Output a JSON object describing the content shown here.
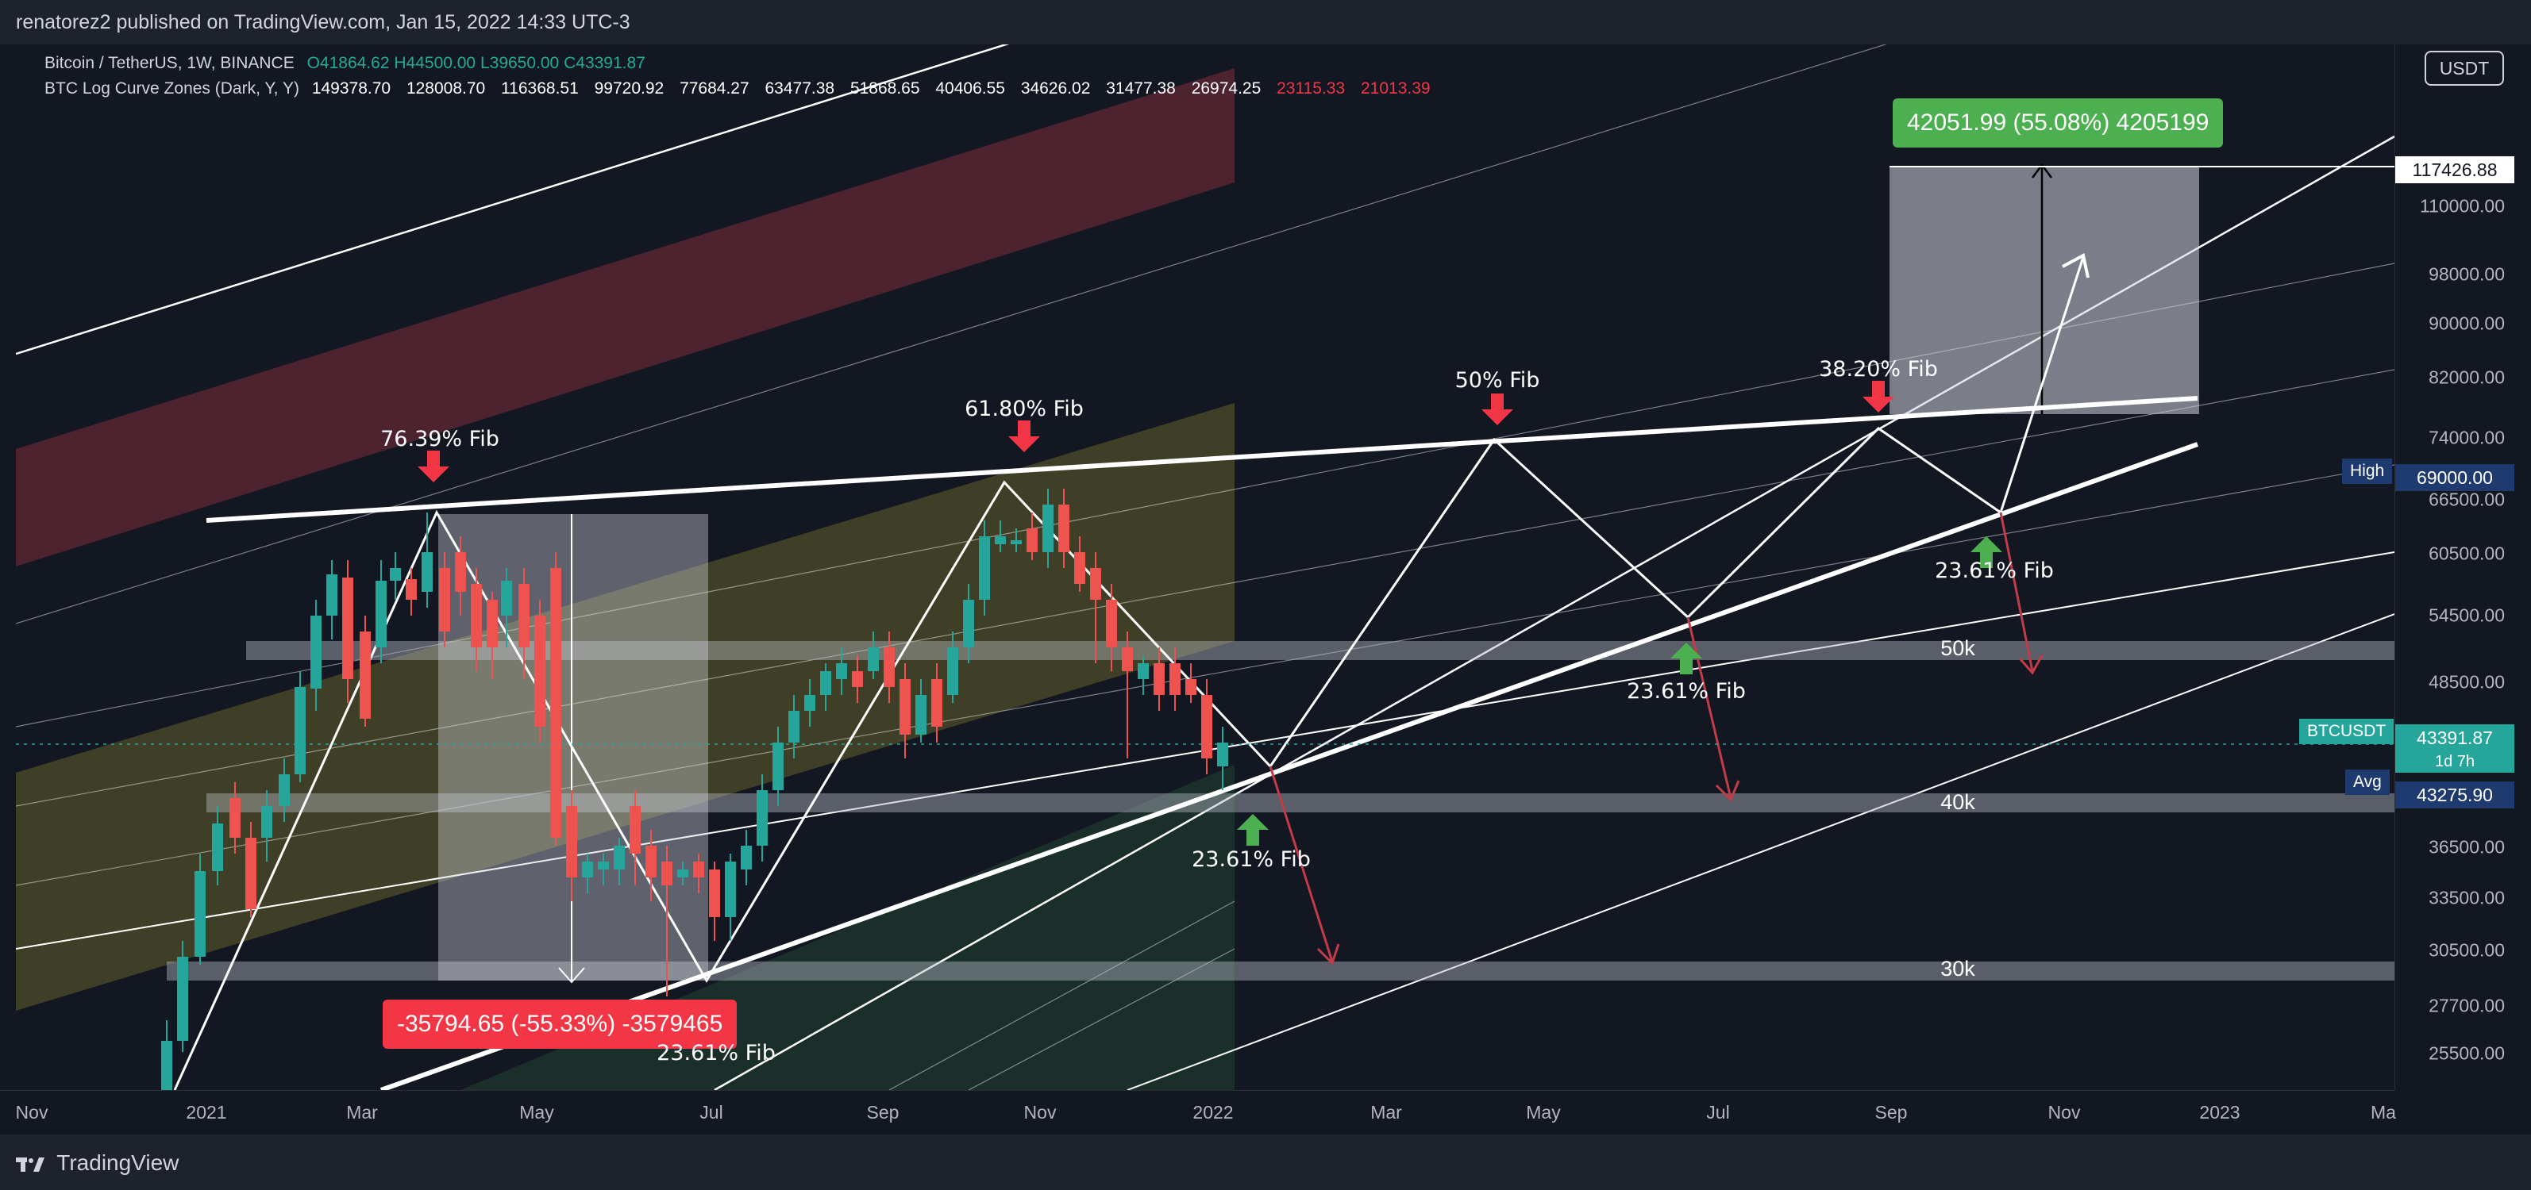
{
  "header": {
    "publish_info": "renatorez2 published on TradingView.com, Jan 15, 2022 14:33 UTC-3"
  },
  "legend": {
    "symbol": "Bitcoin / TetherUS, 1W, BINANCE",
    "open": "O41864.62",
    "high": "H44500.00",
    "low": "L39650.00",
    "close": "C43391.87",
    "indicator": "BTC Log Curve Zones (Dark, Y, Y)",
    "zones_white": [
      "149378.70",
      "128008.70",
      "116368.51",
      "99720.92",
      "77684.27",
      "63477.38",
      "51868.65",
      "40406.55",
      "34626.02",
      "31477.38",
      "26974.25"
    ],
    "zones_red": [
      "23115.33",
      "21013.39"
    ]
  },
  "price_axis": {
    "currency_button": "USDT",
    "labels": [
      "110000.00",
      "98000.00",
      "90000.00",
      "82000.00",
      "74000.00",
      "66500.00",
      "60500.00",
      "54500.00",
      "48500.00",
      "36500.00",
      "33500.00",
      "30500.00",
      "27700.00",
      "25500.00"
    ],
    "target_label": "117426.88",
    "high_label": {
      "name": "High",
      "value": "69000.00"
    },
    "ticker_label": {
      "name": "BTCUSDT",
      "value": "43391.87",
      "countdown": "1d 7h"
    },
    "avg_label": {
      "name": "Avg",
      "value": "43275.90"
    }
  },
  "time_axis": {
    "labels": [
      "Nov",
      "2021",
      "Mar",
      "May",
      "Jul",
      "Sep",
      "Nov",
      "2022",
      "Mar",
      "May",
      "Jul",
      "Sep",
      "Nov",
      "2023",
      "Ma"
    ]
  },
  "annotations": {
    "fib_76": "76.39% Fib",
    "fib_618": "61.80% Fib",
    "fib_50": "50% Fib",
    "fib_382": "38.20% Fib",
    "fib_2361_a": "23.61% Fib",
    "fib_2361_b": "23.61% Fib",
    "fib_2361_c": "23.61% Fib",
    "fib_2361_d": "23.61% Fib",
    "zone_50k": "50k",
    "zone_40k": "40k",
    "zone_30k": "30k"
  },
  "measurements": {
    "up_callout": "42051.99 (55.08%) 4205199",
    "down_callout": "-35794.65 (-55.33%) -3579465"
  },
  "footer": {
    "brand": "TradingView"
  },
  "colors": {
    "background": "#131722",
    "up_candle": "#26a69a",
    "down_candle": "#ef5350",
    "measure_up": "#4caf50",
    "measure_down": "#f23645",
    "ticker": "#26a69a",
    "high_label": "#1e3a6e"
  }
}
